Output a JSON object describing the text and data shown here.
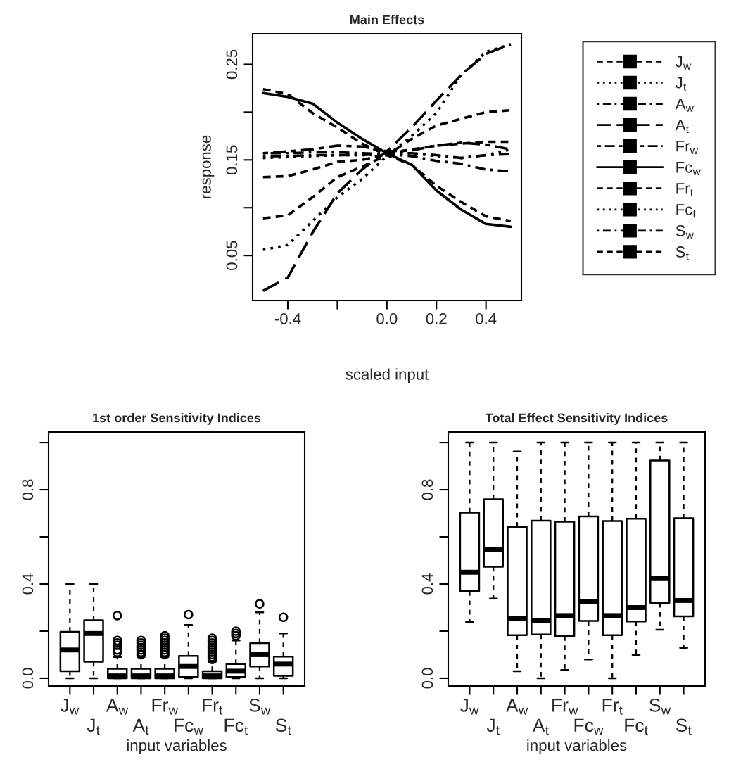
{
  "chart_data": [
    {
      "type": "line",
      "title": "Main Effects",
      "xlabel": "scaled input",
      "ylabel": "response",
      "x": [
        -0.5,
        -0.4,
        -0.3,
        -0.2,
        -0.1,
        0.0,
        0.1,
        0.2,
        0.3,
        0.4,
        0.5
      ],
      "xlim": [
        -0.542,
        0.543
      ],
      "ylim": [
        0.003,
        0.282
      ],
      "xticks": [
        -0.4,
        {
          "value": -0.2,
          "label": null
        },
        {
          "value": 0,
          "label": "0.0"
        },
        0.2,
        0.4
      ],
      "yticks": [
        0.05,
        {
          "value": 0.1,
          "label": null
        },
        0.15,
        {
          "value": 0.2,
          "label": null
        },
        0.25
      ],
      "legend": "right",
      "grid": false,
      "series": [
        {
          "name": "J$_{w}$",
          "color": "#000000",
          "line_style": "dashed",
          "values": [
            0.089,
            0.092,
            0.111,
            0.132,
            0.143,
            0.155,
            0.172,
            0.186,
            0.193,
            0.2,
            0.202
          ]
        },
        {
          "name": "J$_{t}$",
          "color": "#000000",
          "line_style": "dotted",
          "values": [
            0.056,
            0.061,
            0.086,
            0.111,
            0.13,
            0.154,
            0.175,
            0.199,
            0.239,
            0.263,
            0.271
          ]
        },
        {
          "name": "A$_{w}$",
          "color": "#000000",
          "line_style": "dashdot",
          "values": [
            0.154,
            0.154,
            0.155,
            0.155,
            0.155,
            0.157,
            0.157,
            0.155,
            0.152,
            0.155,
            0.156
          ]
        },
        {
          "name": "A$_{t}$",
          "color": "#000000",
          "line_style": "longdash",
          "values": [
            0.013,
            0.027,
            0.074,
            0.115,
            0.14,
            0.159,
            0.184,
            0.212,
            0.239,
            0.261,
            0.271
          ]
        },
        {
          "name": "Fr$_{w}$",
          "color": "#000000",
          "line_style": "twodash",
          "values": [
            0.157,
            0.159,
            0.161,
            0.165,
            0.164,
            0.159,
            0.16,
            0.165,
            0.168,
            0.166,
            0.161
          ]
        },
        {
          "name": "Fc$_{w}$",
          "color": "#000000",
          "line_style": "solid",
          "values": [
            0.22,
            0.216,
            0.209,
            0.189,
            0.172,
            0.157,
            0.145,
            0.118,
            0.098,
            0.083,
            0.08
          ]
        },
        {
          "name": "Fr$_{t}$",
          "color": "#000000",
          "line_style": "dashed",
          "values": [
            0.224,
            0.219,
            0.199,
            0.184,
            0.167,
            0.155,
            0.145,
            0.123,
            0.106,
            0.091,
            0.086
          ]
        },
        {
          "name": "Fc$_{t}$",
          "color": "#000000",
          "line_style": "dotted",
          "values": [
            0.152,
            0.153,
            0.154,
            0.155,
            0.155,
            0.156,
            0.157,
            0.154,
            0.152,
            0.155,
            0.161
          ]
        },
        {
          "name": "S$_{w}$",
          "color": "#000000",
          "line_style": "dashdot",
          "values": [
            0.157,
            0.157,
            0.158,
            0.158,
            0.157,
            0.156,
            0.154,
            0.149,
            0.146,
            0.14,
            0.138
          ]
        },
        {
          "name": "S$_{t}$",
          "color": "#000000",
          "line_style": "dashed",
          "values": [
            0.132,
            0.133,
            0.14,
            0.148,
            0.15,
            0.156,
            0.161,
            0.165,
            0.167,
            0.169,
            0.169
          ]
        }
      ]
    },
    {
      "type": "box",
      "title": "1st order Sensitivity Indices",
      "xlabel": "input variables",
      "categories": [
        "J$_{w}$",
        "J$_{t}$",
        "A$_{w}$",
        "A$_{t}$",
        "Fr$_{w}$",
        "Fc$_{w}$",
        "Fr$_{t}$",
        "Fc$_{t}$",
        "S$_{w}$",
        "S$_{t}$"
      ],
      "ylim": [
        -0.033,
        1.045
      ],
      "yticks": [
        {
          "value": 0,
          "label": "0.0"
        },
        {
          "value": 0.2,
          "label": null
        },
        0.4,
        {
          "value": 0.6,
          "label": null
        },
        0.8,
        {
          "value": 1.0,
          "label": null
        }
      ],
      "grid": false,
      "boxes": [
        {
          "low": 0.0,
          "q1": 0.03,
          "median": 0.12,
          "q3": 0.197,
          "high": 0.4
        },
        {
          "low": 0.0,
          "q1": 0.07,
          "median": 0.19,
          "q3": 0.246,
          "high": 0.4
        },
        {
          "low": 0.0,
          "q1": 0.0,
          "median": 0.01,
          "q3": 0.04,
          "high": 0.09,
          "outliers": [
            0.266,
            0.16,
            0.15,
            0.14,
            0.12,
            0.11
          ]
        },
        {
          "low": 0.0,
          "q1": 0.0,
          "median": 0.01,
          "q3": 0.04,
          "high": 0.09,
          "outliers": [
            0.16,
            0.15,
            0.14,
            0.13,
            0.12,
            0.11,
            0.1
          ]
        },
        {
          "low": 0.0,
          "q1": 0.0,
          "median": 0.01,
          "q3": 0.04,
          "high": 0.09,
          "outliers": [
            0.18,
            0.17,
            0.16,
            0.15,
            0.14,
            0.13,
            0.12,
            0.11,
            0.1
          ]
        },
        {
          "low": 0.0,
          "q1": 0.005,
          "median": 0.05,
          "q3": 0.095,
          "high": 0.226,
          "outliers": [
            0.27
          ]
        },
        {
          "low": 0.0,
          "q1": 0.0,
          "median": 0.01,
          "q3": 0.03,
          "high": 0.07,
          "outliers": [
            0.17,
            0.16,
            0.15,
            0.14,
            0.13,
            0.12,
            0.11,
            0.1,
            0.09,
            0.08
          ]
        },
        {
          "low": 0.0,
          "q1": 0.005,
          "median": 0.03,
          "q3": 0.06,
          "high": 0.16,
          "outliers": [
            0.2,
            0.19,
            0.18
          ]
        },
        {
          "low": 0.0,
          "q1": 0.05,
          "median": 0.1,
          "q3": 0.149,
          "high": 0.28,
          "outliers": [
            0.316
          ]
        },
        {
          "low": 0.0,
          "q1": 0.01,
          "median": 0.06,
          "q3": 0.092,
          "high": 0.19,
          "outliers": [
            0.259
          ]
        }
      ]
    },
    {
      "type": "box",
      "title": "Total Effect Sensitivity Indices",
      "xlabel": "input variables",
      "categories": [
        "J$_{w}$",
        "J$_{t}$",
        "A$_{w}$",
        "A$_{t}$",
        "Fr$_{w}$",
        "Fc$_{w}$",
        "Fr$_{t}$",
        "Fc$_{t}$",
        "S$_{w}$",
        "S$_{t}$"
      ],
      "ylim": [
        -0.033,
        1.045
      ],
      "yticks": [
        {
          "value": 0,
          "label": "0.0"
        },
        {
          "value": 0.2,
          "label": null
        },
        0.4,
        {
          "value": 0.6,
          "label": null
        },
        0.8,
        {
          "value": 1.0,
          "label": null
        }
      ],
      "grid": false,
      "boxes": [
        {
          "low": 0.239,
          "q1": 0.37,
          "median": 0.45,
          "q3": 0.703,
          "high": 1.0
        },
        {
          "low": 0.338,
          "q1": 0.473,
          "median": 0.546,
          "q3": 0.76,
          "high": 1.0
        },
        {
          "low": 0.03,
          "q1": 0.183,
          "median": 0.253,
          "q3": 0.642,
          "high": 0.962
        },
        {
          "low": 0.0,
          "q1": 0.186,
          "median": 0.246,
          "q3": 0.669,
          "high": 1.0
        },
        {
          "low": 0.035,
          "q1": 0.179,
          "median": 0.266,
          "q3": 0.664,
          "high": 1.0
        },
        {
          "low": 0.08,
          "q1": 0.243,
          "median": 0.325,
          "q3": 0.687,
          "high": 1.0
        },
        {
          "low": 0.0,
          "q1": 0.183,
          "median": 0.266,
          "q3": 0.667,
          "high": 1.0
        },
        {
          "low": 0.099,
          "q1": 0.241,
          "median": 0.3,
          "q3": 0.677,
          "high": 1.0
        },
        {
          "low": 0.206,
          "q1": 0.32,
          "median": 0.423,
          "q3": 0.924,
          "high": 1.0
        },
        {
          "low": 0.129,
          "q1": 0.263,
          "median": 0.33,
          "q3": 0.679,
          "high": 1.0
        }
      ]
    }
  ]
}
